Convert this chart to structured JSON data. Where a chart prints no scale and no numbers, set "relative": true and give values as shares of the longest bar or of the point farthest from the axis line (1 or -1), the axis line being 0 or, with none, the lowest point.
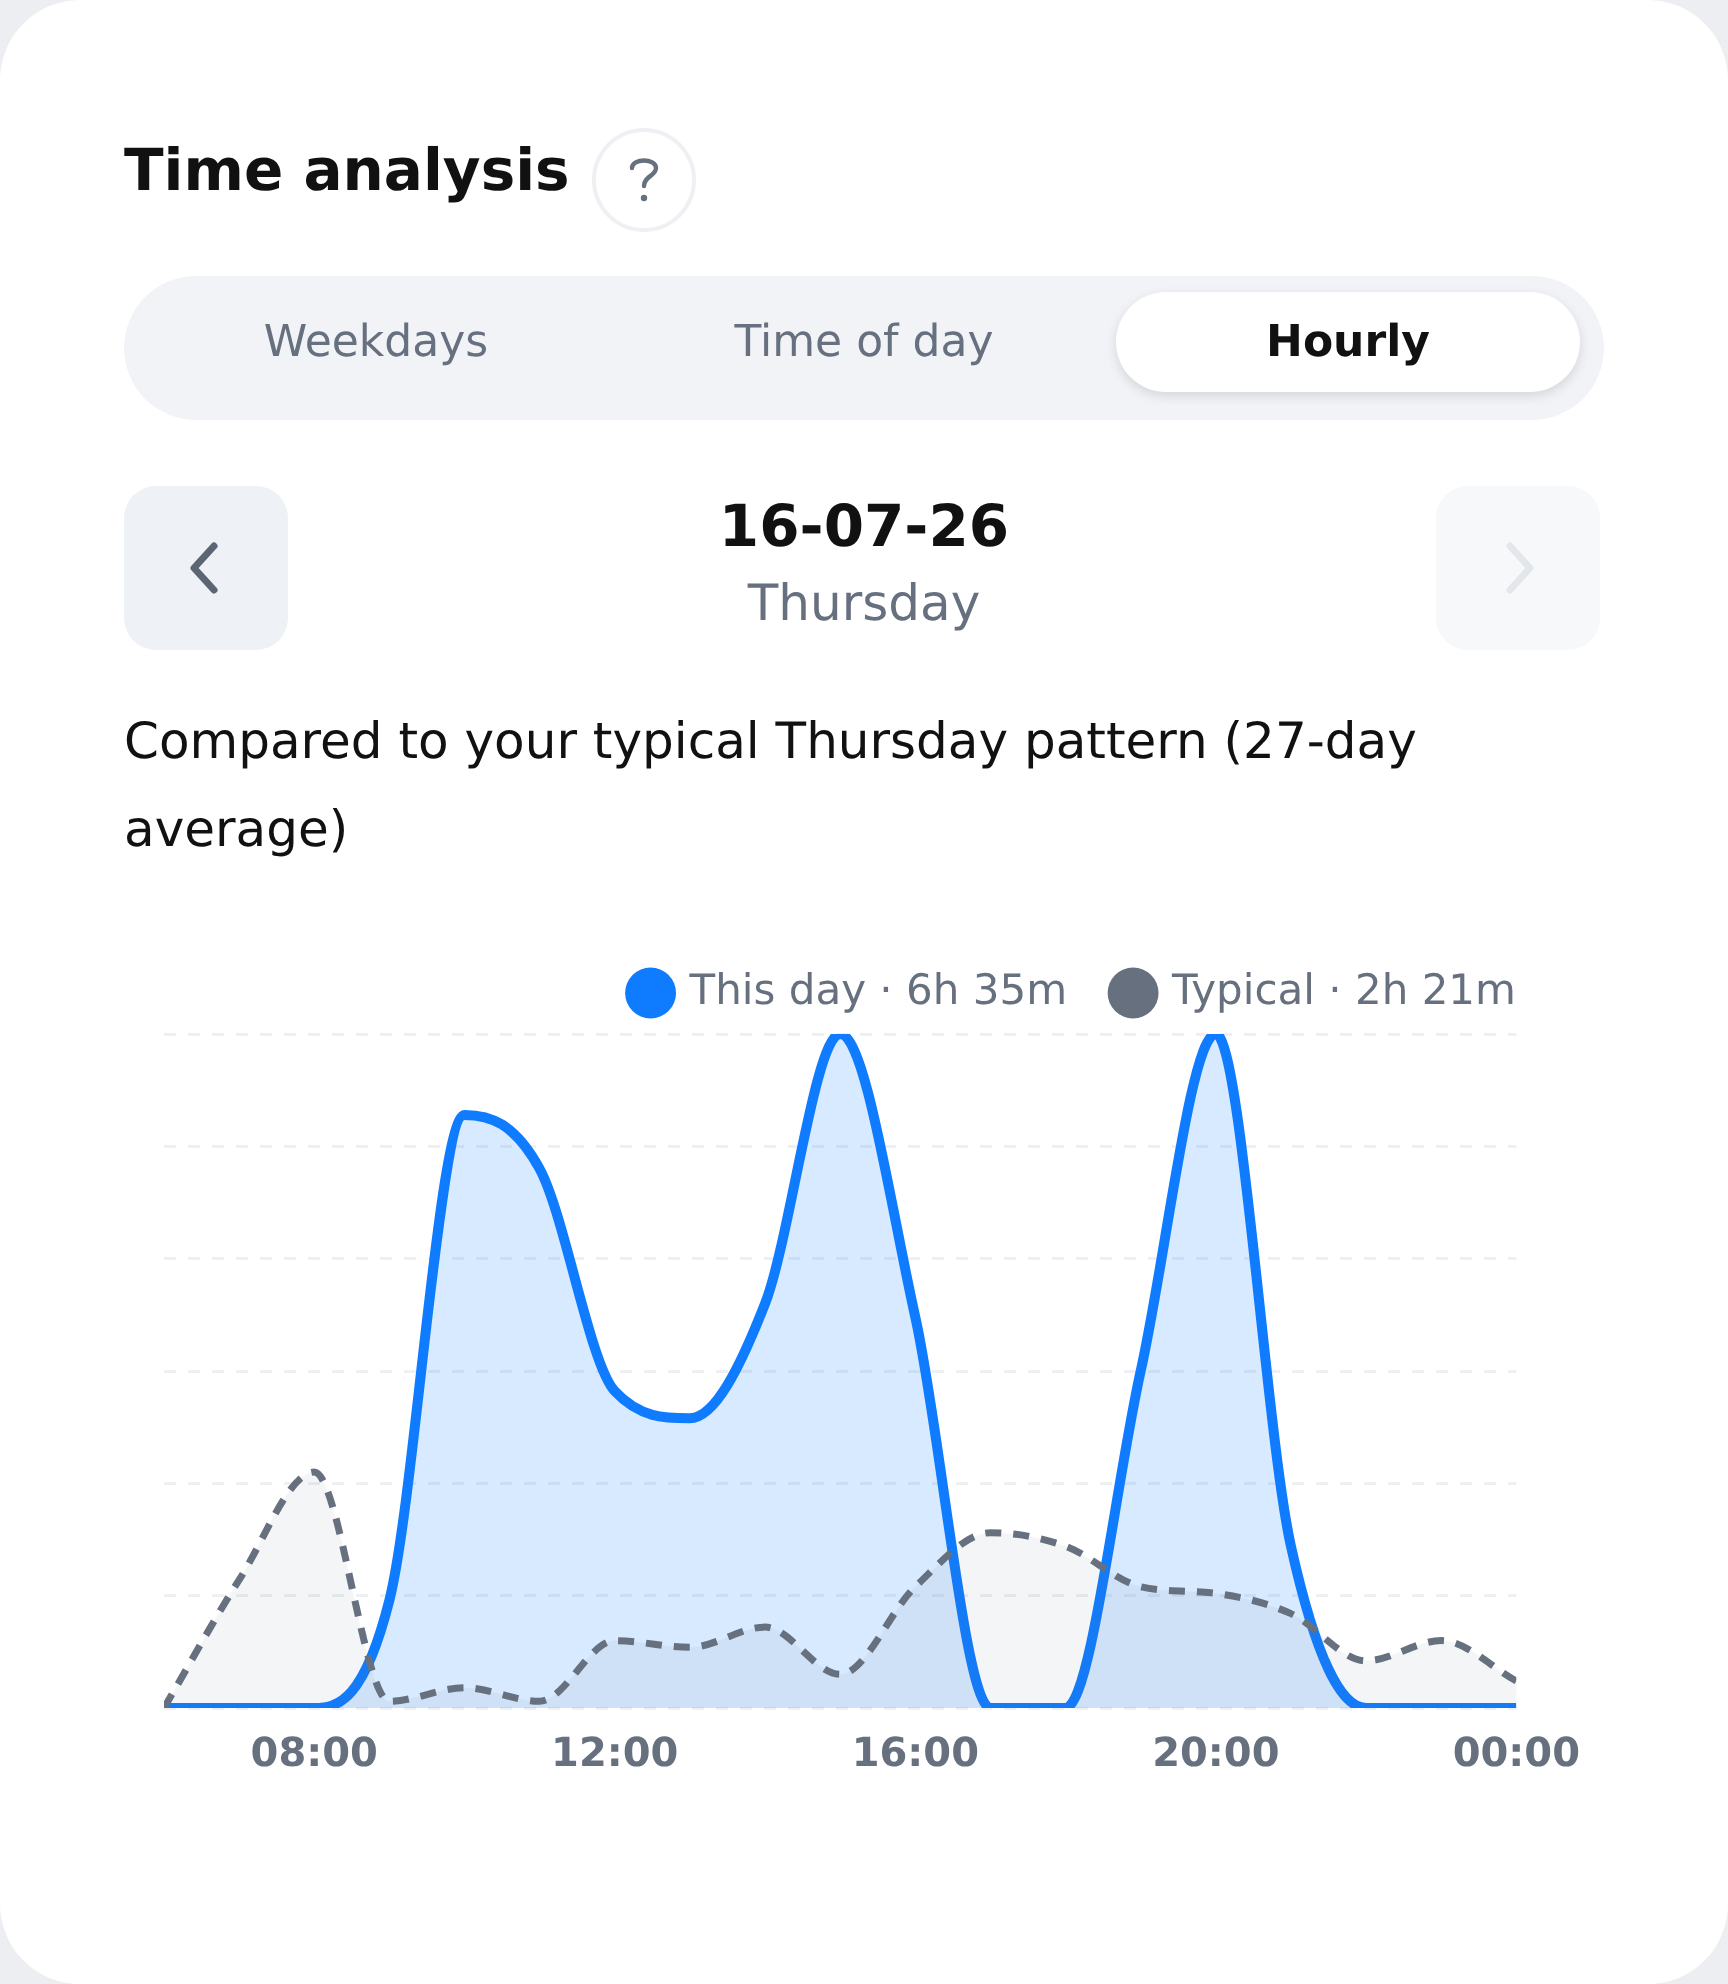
{
  "chart_data": {
    "type": "area",
    "title": "Time analysis",
    "annotations": [
      "Weekdays",
      "Time of day",
      "Hourly",
      "16-07-26",
      "Thursday",
      "Compared to your typical Thursday pattern (27-day average)"
    ],
    "x": [
      6,
      7,
      8,
      9,
      10,
      11,
      12,
      13,
      14,
      15,
      16,
      17,
      18,
      19,
      20,
      21,
      22,
      23,
      24
    ],
    "relative": true,
    "series": [
      {
        "name": "This day · 6h 35m",
        "color": "#0f7bff",
        "line_style": "solid",
        "values": [
          0,
          0,
          0,
          0.16,
          0.88,
          0.8,
          0.47,
          0.43,
          0.6,
          1,
          0.58,
          0,
          0,
          0.5,
          1,
          0.24,
          0,
          0,
          0
        ]
      },
      {
        "name": "Typical · 2h 21m",
        "color": "#66707f",
        "line_style": "dashed",
        "values": [
          0,
          0.19,
          0.35,
          0.01,
          0.03,
          0.01,
          0.1,
          0.09,
          0.12,
          0.05,
          0.18,
          0.26,
          0.24,
          0.18,
          0.17,
          0.14,
          0.07,
          0.1,
          0.04
        ]
      }
    ],
    "xlim": [
      6,
      24
    ],
    "xticks": [
      {
        "value": 8,
        "label": "08:00"
      },
      {
        "value": 12,
        "label": "12:00"
      },
      {
        "value": 16,
        "label": "16:00"
      },
      {
        "value": 20,
        "label": "20:00"
      },
      {
        "value": 24,
        "label": "00:00"
      }
    ],
    "grid": "y",
    "legend": "top right",
    "marker": "none"
  }
}
